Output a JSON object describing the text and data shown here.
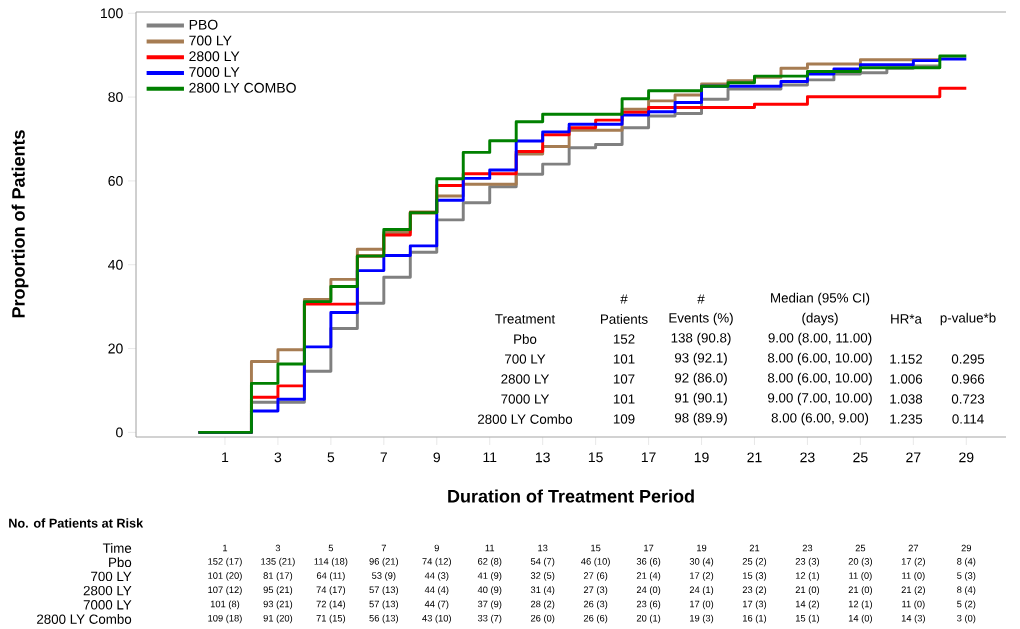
{
  "chart_data": {
    "type": "step",
    "xlabel": "Duration of Treatment Period",
    "ylabel": "Proportion of Patients",
    "x": [
      0,
      2,
      3,
      4,
      5,
      6,
      7,
      8,
      9,
      10,
      11,
      12,
      13,
      14,
      15,
      16,
      17,
      18,
      19,
      20,
      21,
      22,
      23,
      24,
      25,
      26,
      27,
      28,
      29
    ],
    "series": [
      {
        "name": "PBO",
        "color": "#808080",
        "values": [
          0,
          7.2,
          7.2,
          14.6,
          24.8,
          30.8,
          37.0,
          43.0,
          50.7,
          54.8,
          58.6,
          61.6,
          64.0,
          67.9,
          68.7,
          72.7,
          75.5,
          76.1,
          79.5,
          81.9,
          81.9,
          82.9,
          84.1,
          85.5,
          85.8,
          86.9,
          87.4,
          87.4,
          null
        ]
      },
      {
        "name": "700 LY",
        "color": "#a67c52",
        "values": [
          0,
          16.9,
          19.7,
          31.7,
          36.5,
          43.7,
          47.7,
          52.6,
          56.4,
          59.2,
          59.2,
          66.4,
          68.2,
          72.1,
          72.1,
          77.1,
          79.1,
          80.5,
          83.1,
          83.9,
          84.7,
          86.9,
          87.9,
          87.9,
          88.9,
          88.9,
          88.9,
          88.9,
          null
        ]
      },
      {
        "name": "2800 LY",
        "color": "#ff0000",
        "values": [
          0,
          8.4,
          11.1,
          30.6,
          30.6,
          42.1,
          47.1,
          52.4,
          58.9,
          61.7,
          61.7,
          67.0,
          71.0,
          72.7,
          74.5,
          76.4,
          77.5,
          77.5,
          77.5,
          77.5,
          78.3,
          78.3,
          80.1,
          80.1,
          80.1,
          80.1,
          80.1,
          82.1,
          82.1
        ]
      },
      {
        "name": "7000 LY",
        "color": "#0000ff",
        "values": [
          0,
          5.1,
          7.9,
          20.4,
          28.6,
          38.6,
          42.2,
          44.5,
          55.4,
          60.6,
          62.6,
          69.5,
          71.7,
          73.5,
          73.5,
          75.7,
          76.5,
          78.7,
          82.6,
          82.6,
          82.6,
          83.7,
          85.5,
          86.7,
          87.7,
          87.7,
          88.7,
          89.1,
          89.1
        ]
      },
      {
        "name": "2800 LY COMBO",
        "color": "#008000",
        "values": [
          0,
          11.7,
          16.3,
          31.2,
          34.8,
          42.1,
          48.4,
          52.4,
          60.5,
          66.8,
          69.6,
          74.1,
          75.9,
          75.9,
          75.9,
          79.6,
          81.5,
          81.5,
          82.6,
          83.4,
          85.0,
          85.0,
          86.1,
          86.1,
          87.0,
          87.0,
          87.0,
          89.8,
          89.8
        ]
      }
    ],
    "xlim": [
      -2.36,
      30.5
    ],
    "ylim": [
      -1.1,
      100.3
    ],
    "xticks": [
      1,
      3,
      5,
      7,
      9,
      11,
      13,
      15,
      17,
      19,
      21,
      23,
      25,
      27,
      29
    ],
    "yticks": [
      0,
      20,
      40,
      60,
      80,
      100
    ],
    "legend": "top left",
    "marker": "none",
    "line_style": "solid",
    "annotations": [
      "#",
      "#",
      "Median (95% CI)",
      "Treatment",
      "Patients",
      "Events (%)",
      "(days)",
      "HR*a",
      "p-value*b",
      "Pbo",
      "152",
      "138 (90.8)",
      "9.00 (8.00, 11.00)",
      "700 LY",
      "101",
      "93 (92.1)",
      "8.00 (6.00, 10.00)",
      "1.152",
      "0.295",
      "2800 LY",
      "107",
      "92 (86.0)",
      "8.00 (6.00, 10.00)",
      "1.006",
      "0.966",
      "7000 LY",
      "101",
      "91 (90.1)",
      "9.00 (7.00, 10.00)",
      "1.038",
      "0.723",
      "2800 LY Combo",
      "109",
      "98 (89.9)",
      "8.00 (6.00, 9.00)",
      "1.235",
      "0.114",
      "No. of Patients at Risk",
      "Time",
      "1",
      "3",
      "5",
      "7",
      "9",
      "11",
      "13",
      "15",
      "17",
      "19",
      "21",
      "23",
      "25",
      "27",
      "29",
      "Pbo",
      "152 (17)",
      "135 (21)",
      "114 (18)",
      "96 (21)",
      "74 (12)",
      "62 (8)",
      "54 (7)",
      "46 (10)",
      "36 (6)",
      "30 (4)",
      "25 (2)",
      "23 (3)",
      "20 (3)",
      "17 (2)",
      "8 (4)",
      "700 LY",
      "101 (20)",
      "81 (17)",
      "64 (11)",
      "53 (9)",
      "44 (3)",
      "41 (9)",
      "32 (5)",
      "27 (6)",
      "21 (4)",
      "17 (2)",
      "15 (3)",
      "12 (1)",
      "11 (0)",
      "11 (0)",
      "5 (3)",
      "2800 LY",
      "107 (12)",
      "95 (21)",
      "74 (17)",
      "57 (13)",
      "44 (4)",
      "40 (9)",
      "31 (4)",
      "27 (3)",
      "24 (0)",
      "24 (1)",
      "23 (2)",
      "21 (0)",
      "21 (0)",
      "21 (2)",
      "8 (4)",
      "7000 LY",
      "101 (8)",
      "93 (21)",
      "72 (14)",
      "57 (13)",
      "44 (7)",
      "37 (9)",
      "28 (2)",
      "26 (3)",
      "23 (6)",
      "17 (0)",
      "17 (3)",
      "14 (2)",
      "12 (1)",
      "11 (0)",
      "5 (2)",
      "2800 LY Combo",
      "109 (18)",
      "91 (20)",
      "71 (15)",
      "56 (13)",
      "43 (10)",
      "33 (7)",
      "26 (0)",
      "26 (6)",
      "20 (1)",
      "19 (3)",
      "16 (1)",
      "15 (1)",
      "14 (0)",
      "14 (3)",
      "3 (0)"
    ]
  }
}
